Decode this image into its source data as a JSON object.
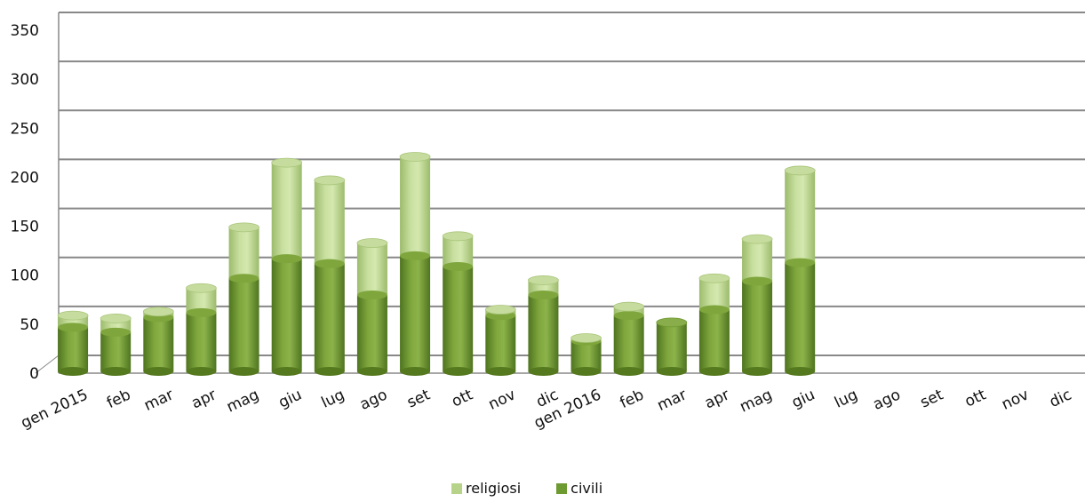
{
  "chart_data": {
    "type": "bar",
    "stacked": true,
    "categories": [
      "gen 2015",
      "feb",
      "mar",
      "apr",
      "mag",
      "giu",
      "lug",
      "ago",
      "set",
      "ott",
      "nov",
      "dic",
      "gen 2016",
      "feb",
      "mar",
      "apr",
      "mag",
      "giu",
      "lug",
      "ago",
      "set",
      "ott",
      "nov",
      "dic"
    ],
    "series": [
      {
        "name": "civili",
        "color": "#6e9a32",
        "values": [
          45,
          40,
          55,
          60,
          95,
          115,
          110,
          78,
          118,
          107,
          57,
          78,
          31,
          57,
          50,
          63,
          92,
          111,
          0,
          0,
          0,
          0,
          0,
          0
        ]
      },
      {
        "name": "religiosi",
        "color": "#b7d38a",
        "values": [
          12,
          14,
          6,
          25,
          52,
          98,
          85,
          53,
          101,
          31,
          6,
          15,
          3,
          9,
          0,
          32,
          43,
          94,
          0,
          0,
          0,
          0,
          0,
          0
        ]
      }
    ],
    "ylim": [
      0,
      350
    ],
    "yticks": [
      0,
      50,
      100,
      150,
      200,
      250,
      300,
      350
    ],
    "grid": true,
    "legend_position": "bottom"
  },
  "legend": {
    "religiosi": "religiosi",
    "civili": "civili"
  }
}
